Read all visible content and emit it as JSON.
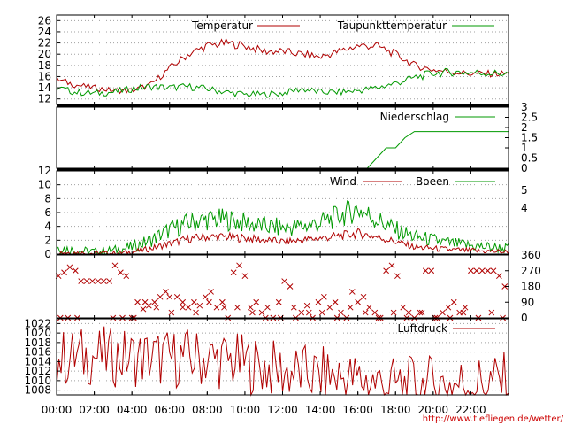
{
  "x_ticks": [
    "00:00",
    "02:00",
    "04:00",
    "06:00",
    "08:00",
    "10:00",
    "12:00",
    "14:00",
    "16:00",
    "18:00",
    "20:00",
    "22:00"
  ],
  "credit": "http://www.tiefliegen.de/wetter/",
  "colors": {
    "red": "#b00000",
    "green": "#009900",
    "grid": "#a0a0a0",
    "axis": "#000000"
  },
  "chart_data": [
    {
      "type": "line",
      "xlabel": "",
      "ylabel": "",
      "ylim": [
        11,
        27
      ],
      "yticks": [
        12,
        14,
        16,
        18,
        20,
        22,
        24,
        26
      ],
      "grid": true,
      "legend": "top",
      "series": [
        {
          "name": "Temperatur",
          "color": "#b00000",
          "x": [
            0,
            1,
            2,
            3,
            4,
            5,
            6,
            7,
            8,
            9,
            10,
            11,
            12,
            13,
            14,
            15,
            16,
            17,
            18,
            19,
            20,
            21,
            22,
            23,
            24
          ],
          "values": [
            15.5,
            14.5,
            14.0,
            13.5,
            13.5,
            14.5,
            17.5,
            20.0,
            21.5,
            22.0,
            21.5,
            20.5,
            20.5,
            20.0,
            19.5,
            20.5,
            21.5,
            21.5,
            20.0,
            18.0,
            17.2,
            16.8,
            16.5,
            16.5,
            16.5
          ]
        },
        {
          "name": "Taupunkttemperatur",
          "color": "#009900",
          "x": [
            0,
            1,
            2,
            3,
            4,
            5,
            6,
            7,
            8,
            9,
            10,
            11,
            12,
            13,
            14,
            15,
            16,
            17,
            18,
            19,
            20,
            21,
            22,
            23,
            24
          ],
          "values": [
            14.0,
            13.2,
            13.0,
            13.2,
            13.8,
            14.2,
            14.0,
            14.2,
            13.8,
            13.2,
            12.8,
            12.8,
            13.0,
            13.8,
            13.2,
            13.2,
            13.5,
            14.0,
            14.8,
            15.8,
            16.6,
            16.8,
            16.7,
            16.6,
            16.5
          ]
        }
      ]
    },
    {
      "type": "line",
      "xlabel": "",
      "ylabel": "",
      "ylim": [
        0,
        3
      ],
      "yticks": [
        "0",
        "0.5",
        "1",
        "1.5",
        "2",
        "2.5",
        "3"
      ],
      "legend": "top-right",
      "series": [
        {
          "name": "Niederschlag",
          "color": "#009900",
          "x": [
            0,
            16.3,
            16.5,
            17,
            17.5,
            18,
            18.5,
            19,
            20,
            22,
            24
          ],
          "values": [
            0,
            0,
            0,
            0.5,
            1.0,
            1.0,
            1.5,
            1.8,
            1.8,
            1.8,
            1.8
          ]
        }
      ]
    },
    {
      "type": "line",
      "xlabel": "",
      "ylabel": "",
      "ylim": [
        0,
        12
      ],
      "yticks": [
        0,
        2,
        4,
        6,
        8,
        10,
        12
      ],
      "right_ticks": [
        "4",
        "5"
      ],
      "grid": true,
      "legend": "top-right",
      "series": [
        {
          "name": "Wind",
          "color": "#b00000",
          "x": [
            0,
            1,
            2,
            3,
            4,
            5,
            6,
            7,
            8,
            9,
            10,
            11,
            12,
            13,
            14,
            15,
            16,
            17,
            18,
            19,
            20,
            21,
            22,
            23,
            24
          ],
          "values": [
            0.3,
            0.2,
            0.1,
            0.1,
            0.3,
            0.8,
            1.5,
            2.2,
            2.5,
            2.5,
            2.3,
            2.0,
            1.8,
            2.0,
            2.3,
            2.6,
            3.0,
            2.5,
            1.8,
            1.0,
            0.8,
            0.6,
            0.5,
            0.4,
            0.3
          ]
        },
        {
          "name": "Boeen",
          "color": "#009900",
          "x": [
            0,
            1,
            2,
            3,
            4,
            5,
            6,
            7,
            8,
            9,
            10,
            11,
            12,
            13,
            14,
            15,
            16,
            17,
            18,
            19,
            20,
            21,
            22,
            23,
            24
          ],
          "values": [
            1.0,
            0.5,
            0.3,
            0.5,
            1.0,
            2.0,
            3.5,
            4.5,
            5.0,
            5.0,
            4.5,
            4.0,
            3.8,
            4.0,
            4.5,
            5.5,
            6.5,
            5.0,
            3.5,
            2.5,
            2.0,
            1.5,
            1.2,
            1.0,
            0.8
          ]
        }
      ]
    },
    {
      "type": "scatter",
      "xlabel": "",
      "ylabel": "",
      "ylim": [
        0,
        360
      ],
      "right_ticks": [
        "0",
        "90",
        "180",
        "270",
        "360"
      ],
      "marker": "x",
      "series": [
        {
          "name": "",
          "color": "#b00000",
          "x": [
            0.1,
            0.4,
            0.7,
            1.0,
            1.3,
            1.6,
            1.9,
            2.2,
            2.5,
            2.8,
            3.1,
            3.4,
            3.7,
            4.0,
            4.3,
            4.6,
            4.9,
            5.2,
            5.5,
            5.8,
            6.1,
            6.4,
            6.7,
            7.0,
            7.3,
            7.6,
            7.9,
            8.2,
            8.5,
            8.8,
            9.1,
            9.4,
            9.7,
            10.0,
            10.3,
            10.6,
            10.9,
            11.2,
            11.5,
            11.8,
            12.1,
            12.4,
            12.7,
            13.0,
            13.3,
            13.6,
            13.9,
            14.2,
            14.5,
            14.8,
            15.1,
            15.4,
            15.7,
            16.0,
            16.3,
            16.6,
            16.9,
            17.2,
            17.5,
            17.8,
            18.1,
            18.4,
            18.7,
            19.0,
            19.3,
            19.6,
            19.9,
            20.2,
            20.5,
            20.8,
            21.1,
            21.4,
            21.7,
            22.0,
            22.3,
            22.6,
            22.9,
            23.2,
            23.5,
            23.8
          ],
          "values": [
            240,
            260,
            290,
            270,
            210,
            210,
            210,
            210,
            210,
            210,
            300,
            260,
            240,
            0,
            90,
            50,
            70,
            90,
            120,
            150,
            30,
            120,
            90,
            60,
            90,
            70,
            120,
            150,
            60,
            90,
            0,
            260,
            300,
            240,
            60,
            90,
            30,
            60,
            0,
            90,
            210,
            180,
            0,
            30,
            70,
            0,
            90,
            120,
            60,
            90,
            30,
            0,
            150,
            90,
            120,
            60,
            30,
            0,
            270,
            300,
            240,
            60,
            30,
            0,
            30,
            270,
            270,
            0,
            30,
            60,
            90,
            30,
            60,
            270,
            270,
            270,
            270,
            270,
            240,
            180
          ]
        },
        {
          "name": "",
          "color": "#b00000",
          "x": [
            0.2,
            0.6,
            1.1,
            3.0,
            3.5,
            4.1,
            4.7,
            5.3,
            6.0,
            6.7,
            7.4,
            8.1,
            8.9,
            9.6,
            10.4,
            11.1,
            11.9,
            12.6,
            13.4,
            14.1,
            14.9,
            15.6,
            16.4,
            17.1,
            17.9,
            18.6,
            19.4,
            20.1,
            20.9,
            21.6,
            22.4,
            23.1,
            23.7
          ],
          "values": [
            0,
            0,
            0,
            0,
            0,
            0,
            90,
            60,
            120,
            60,
            30,
            90,
            60,
            60,
            30,
            0,
            0,
            60,
            30,
            30,
            0,
            60,
            30,
            0,
            30,
            0,
            30,
            0,
            0,
            30,
            0,
            30,
            0
          ]
        }
      ]
    },
    {
      "type": "line",
      "xlabel": "",
      "ylabel": "",
      "ylim": [
        1007,
        1023
      ],
      "yticks": [
        1008,
        1010,
        1012,
        1014,
        1016,
        1018,
        1020,
        1022
      ],
      "grid": true,
      "legend": "top-right",
      "series": [
        {
          "name": "Luftdruck",
          "color": "#b00000",
          "x": [
            0,
            1,
            2,
            3,
            4,
            5,
            6,
            7,
            8,
            9,
            10,
            11,
            12,
            13,
            14,
            15,
            16,
            17,
            18,
            19,
            20,
            21,
            22,
            23,
            24
          ],
          "values": [
            1014.5,
            1015.0,
            1015.2,
            1015.0,
            1014.8,
            1014.8,
            1014.6,
            1014.8,
            1014.6,
            1014.2,
            1013.6,
            1012.8,
            1012.0,
            1011.5,
            1011.0,
            1010.7,
            1010.2,
            1009.6,
            1009.0,
            1009.0,
            1009.2,
            1009.3,
            1009.4,
            1009.6,
            1010.0
          ]
        }
      ]
    }
  ]
}
